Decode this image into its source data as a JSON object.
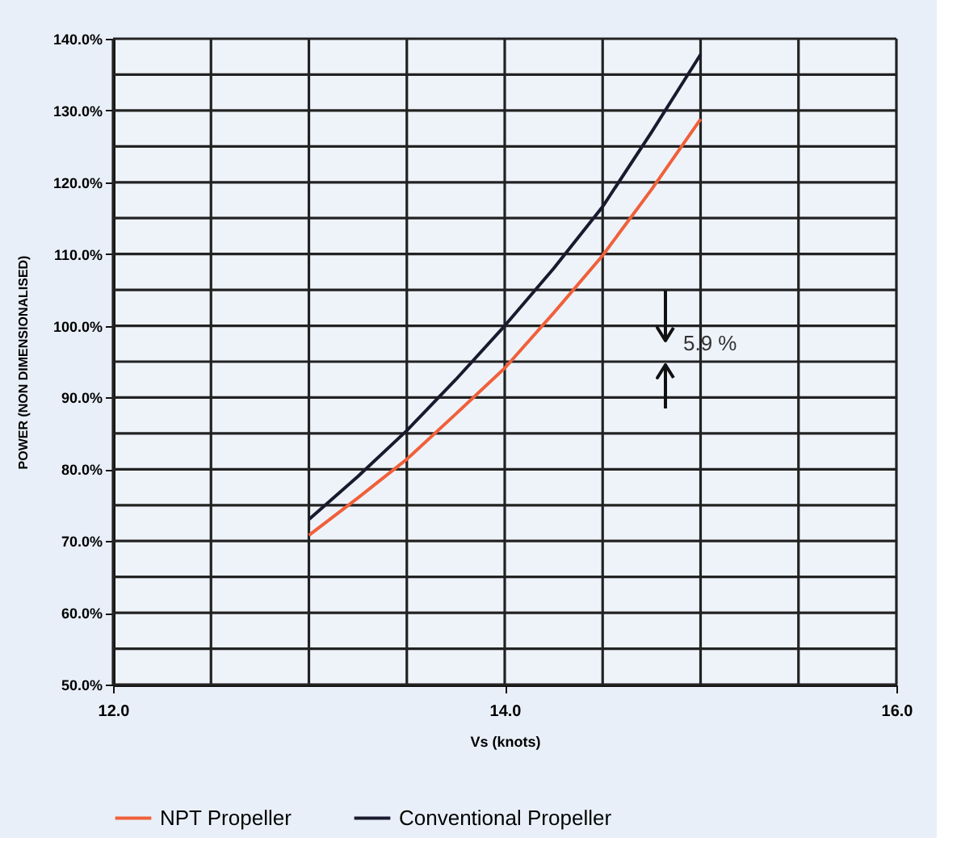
{
  "chart_data": {
    "type": "line",
    "xlabel": "Vs (knots)",
    "ylabel": "POWER (NON DIMENSIONALISED)",
    "x": [
      13.0,
      13.25,
      13.5,
      13.75,
      14.0,
      14.25,
      14.5,
      14.75,
      15.0
    ],
    "series": [
      {
        "name": "NPT  Propeller",
        "color": "#f0603a",
        "values": [
          70.8,
          76.0,
          81.4,
          87.7,
          94.1,
          101.8,
          109.8,
          119.0,
          128.8
        ]
      },
      {
        "name": "Conventional Propeller",
        "color": "#1a1a2e",
        "values": [
          73.0,
          79.0,
          85.4,
          92.5,
          100.0,
          108.0,
          116.6,
          127.0,
          137.8
        ]
      }
    ],
    "xlim": [
      12.0,
      16.0
    ],
    "xticks": [
      {
        "value": 12,
        "label": "12.0"
      },
      {
        "value": 12.5,
        "label": null
      },
      {
        "value": 13,
        "label": null
      },
      {
        "value": 13.5,
        "label": null
      },
      {
        "value": 14,
        "label": "14.0"
      },
      {
        "value": 14.5,
        "label": null
      },
      {
        "value": 15,
        "label": null
      },
      {
        "value": 15.5,
        "label": null
      },
      {
        "value": 16,
        "label": "16.0"
      }
    ],
    "ylim": [
      50,
      140
    ],
    "yticks": [
      {
        "value": 50,
        "label": "50.0%"
      },
      {
        "value": 55,
        "label": null
      },
      {
        "value": 60,
        "label": "60.0%"
      },
      {
        "value": 65,
        "label": null
      },
      {
        "value": 70,
        "label": "70.0%"
      },
      {
        "value": 75,
        "label": null
      },
      {
        "value": 80,
        "label": "80.0%"
      },
      {
        "value": 85,
        "label": null
      },
      {
        "value": 90,
        "label": "90.0%"
      },
      {
        "value": 95,
        "label": null
      },
      {
        "value": 100,
        "label": "100.0%"
      },
      {
        "value": 105,
        "label": null
      },
      {
        "value": 110,
        "label": "110.0%"
      },
      {
        "value": 115,
        "label": null
      },
      {
        "value": 120,
        "label": "120.0%"
      },
      {
        "value": 125,
        "label": null
      },
      {
        "value": 130,
        "label": "130.0%"
      },
      {
        "value": 135,
        "label": null
      },
      {
        "value": 140,
        "label": "140.0%"
      }
    ],
    "annotations": [
      "5.9 %"
    ],
    "grid": true,
    "legend": "bottom",
    "marker": "none",
    "line_style": "solid"
  }
}
